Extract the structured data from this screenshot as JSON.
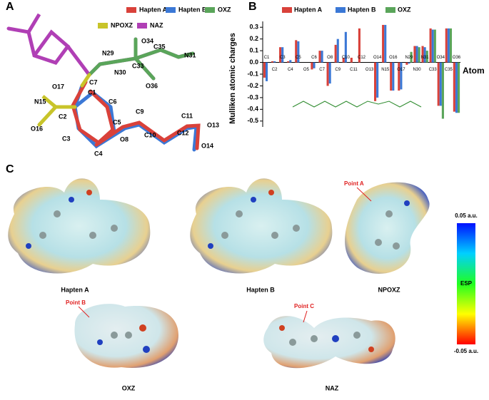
{
  "panel_a": {
    "letter": "A",
    "legend": [
      {
        "name": "Hapten A",
        "color": "#d9413a"
      },
      {
        "name": "Hapten B",
        "color": "#3b78d6"
      },
      {
        "name": "OXZ",
        "color": "#5aa55a"
      },
      {
        "name": "NPOXZ",
        "color": "#c8c42a"
      },
      {
        "name": "NAZ",
        "color": "#b03fb5"
      }
    ],
    "atoms": [
      "N29",
      "O34",
      "C35",
      "N31",
      "N30",
      "C33",
      "O36",
      "C7",
      "O17",
      "C1",
      "N15",
      "C6",
      "C2",
      "O16",
      "C5",
      "C9",
      "C11",
      "C3",
      "C4",
      "O8",
      "C10",
      "C12",
      "O13",
      "O14"
    ]
  },
  "chart_data": {
    "type": "bar",
    "letter": "B",
    "ylabel": "Mulliken atomic charges",
    "xlabel": "Atom",
    "categories": [
      "C1",
      "C2",
      "C3",
      "C4",
      "C5",
      "O5",
      "C6",
      "C7",
      "O8",
      "C9",
      "C10",
      "C11",
      "C12",
      "O13",
      "O14",
      "N15",
      "O16",
      "O17",
      "N29",
      "N30",
      "N31",
      "C33",
      "O34",
      "C35",
      "O36"
    ],
    "series": [
      {
        "name": "Hapten A",
        "color": "#d9413a",
        "values": [
          -0.13,
          0.01,
          0.13,
          0.01,
          0.19,
          null,
          -0.06,
          0.1,
          -0.2,
          0.15,
          0.04,
          0.04,
          0.29,
          null,
          -0.33,
          0.32,
          -0.24,
          -0.24,
          -0.02,
          0.14,
          0.14,
          0.29,
          -0.37,
          0.29,
          -0.42
        ]
      },
      {
        "name": "Hapten B",
        "color": "#3b78d6",
        "values": [
          -0.16,
          0.01,
          0.13,
          0.02,
          0.18,
          null,
          -0.05,
          0.1,
          -0.18,
          0.2,
          0.26,
          null,
          null,
          null,
          -0.3,
          0.32,
          -0.24,
          -0.23,
          -0.01,
          0.14,
          0.13,
          0.28,
          -0.37,
          0.29,
          -0.43
        ]
      },
      {
        "name": "OXZ",
        "color": "#5aa55a",
        "values": [
          null,
          null,
          null,
          null,
          null,
          null,
          null,
          null,
          null,
          null,
          null,
          null,
          null,
          null,
          null,
          null,
          null,
          null,
          0.09,
          0.13,
          0.1,
          0.28,
          -0.48,
          0.29,
          -0.43
        ]
      }
    ],
    "ylim": [
      -0.55,
      0.35
    ],
    "yticks": [
      -0.5,
      -0.4,
      -0.3,
      -0.2,
      -0.1,
      {
        "value": 0,
        "label": "0.0"
      },
      0.1,
      0.2,
      0.3
    ]
  },
  "panel_c": {
    "letter": "C",
    "surfaces": [
      "Hapten A",
      "Hapten B",
      "NPOXZ",
      "OXZ",
      "NAZ"
    ],
    "points": [
      "Point A",
      "Point B",
      "Point C"
    ],
    "colorbar": {
      "max": "0.05 a.u.",
      "title": "ESP",
      "min": "-0.05 a.u."
    }
  }
}
